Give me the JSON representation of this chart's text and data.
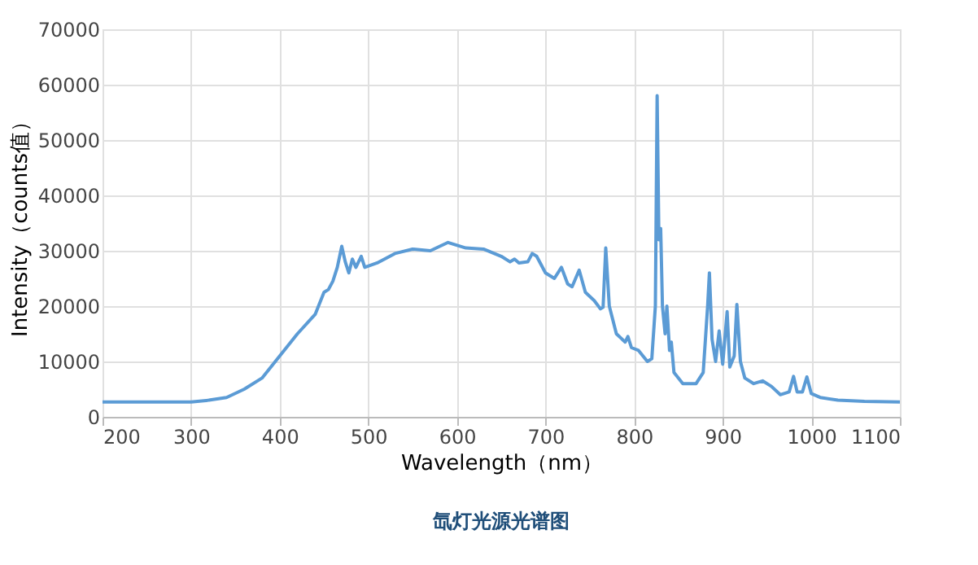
{
  "chart_data": {
    "type": "line",
    "xlabel": "Wavelength（nm）",
    "ylabel": "Intensity（counts值）",
    "annotations": [
      "氙灯光源光谱图"
    ],
    "series": [
      {
        "color": "#5b9bd5",
        "x": [
          200,
          250,
          300,
          320,
          340,
          360,
          380,
          400,
          420,
          440,
          450,
          455,
          460,
          465,
          470,
          474,
          478,
          482,
          486,
          492,
          496,
          510,
          530,
          550,
          570,
          590,
          610,
          630,
          650,
          660,
          665,
          670,
          680,
          685,
          690,
          700,
          710,
          718,
          725,
          730,
          738,
          745,
          755,
          762,
          765,
          768,
          772,
          780,
          790,
          793,
          797,
          805,
          815,
          820,
          824,
          826,
          828,
          830,
          832,
          835,
          837,
          840,
          842,
          845,
          855,
          870,
          878,
          883,
          885,
          888,
          892,
          896,
          900,
          905,
          908,
          913,
          916,
          920,
          925,
          935,
          945,
          955,
          965,
          975,
          980,
          984,
          990,
          995,
          1000,
          1010,
          1030,
          1060,
          1100
        ],
        "values": [
          2700,
          2700,
          2700,
          3000,
          3500,
          5000,
          7000,
          11000,
          15000,
          18500,
          22500,
          23000,
          24500,
          27000,
          30800,
          28000,
          26000,
          28500,
          27000,
          29000,
          27000,
          27800,
          29500,
          30300,
          30000,
          31500,
          30500,
          30300,
          29000,
          28000,
          28500,
          27800,
          28000,
          29500,
          29000,
          26000,
          25000,
          27000,
          24000,
          23500,
          26500,
          22500,
          21000,
          19500,
          19800,
          30500,
          20000,
          15000,
          13500,
          14500,
          12500,
          12000,
          10000,
          10500,
          20000,
          58000,
          32000,
          34000,
          20000,
          15000,
          20000,
          12000,
          13500,
          8000,
          6000,
          6000,
          8000,
          20000,
          26000,
          14000,
          10000,
          15500,
          9500,
          19000,
          9000,
          11000,
          20300,
          10000,
          7000,
          6000,
          6500,
          5500,
          4000,
          4500,
          7300,
          4500,
          4500,
          7200,
          4200,
          3500,
          3000,
          2800,
          2700
        ]
      }
    ],
    "xlim": [
      200,
      1100
    ],
    "xticks": [
      200,
      300,
      400,
      500,
      600,
      700,
      800,
      900,
      1000,
      1100
    ],
    "ylim": [
      0,
      70000
    ],
    "yticks": [
      0,
      10000,
      20000,
      30000,
      40000,
      50000,
      60000,
      70000
    ],
    "grid": true,
    "marker": "none",
    "line_style": "solid"
  }
}
